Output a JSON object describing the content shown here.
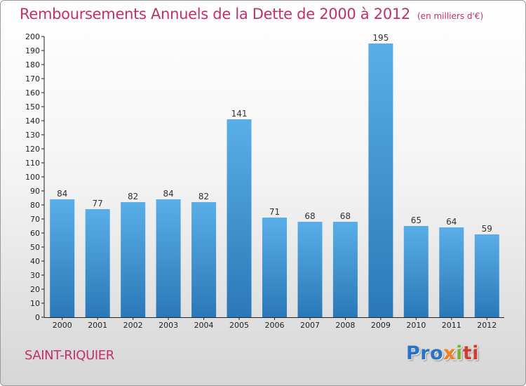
{
  "header": {
    "title": "Remboursements Annuels de la Dette de 2000 à 2012",
    "unit": "(en milliers d'€)"
  },
  "footer": {
    "town": "SAINT-RIQUIER",
    "logo_parts": [
      "Pro",
      "x",
      "i",
      "ti"
    ]
  },
  "colors": {
    "title": "#c0306a",
    "bar_top": "#5aaee8",
    "bar_bottom": "#2a78b8",
    "logo_blue": "#2a72c4",
    "logo_orange": "#f07f1e",
    "logo_green": "#7bb32e",
    "logo_red": "#d23a2e"
  },
  "chart_data": {
    "type": "bar",
    "title": "Remboursements Annuels de la Dette de 2000 à 2012",
    "subtitle": "(en milliers d'€)",
    "xlabel": "",
    "ylabel": "",
    "categories": [
      "2000",
      "2001",
      "2002",
      "2003",
      "2004",
      "2005",
      "2006",
      "2007",
      "2008",
      "2009",
      "2010",
      "2011",
      "2012"
    ],
    "values": [
      84,
      77,
      82,
      84,
      82,
      141,
      71,
      68,
      68,
      195,
      65,
      64,
      59
    ],
    "ylim": [
      0,
      200
    ],
    "yticks": [
      0,
      10,
      20,
      30,
      40,
      50,
      60,
      70,
      80,
      90,
      100,
      110,
      120,
      130,
      140,
      150,
      160,
      170,
      180,
      190,
      200
    ],
    "grid": false,
    "legend": "none"
  }
}
